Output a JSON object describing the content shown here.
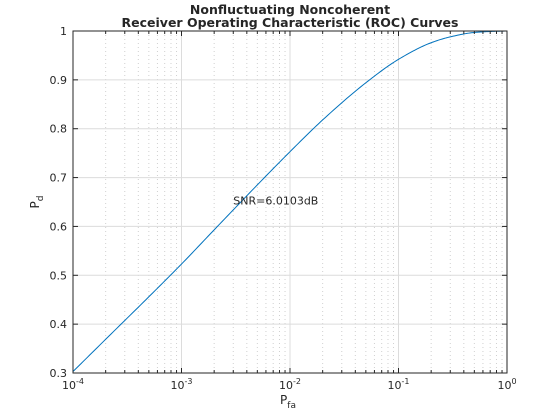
{
  "chart_data": {
    "type": "line",
    "title": [
      "Nonfluctuating Noncoherent",
      "Receiver Operating Characteristic (ROC) Curves"
    ],
    "xlabel": {
      "base": "P",
      "sub": "fa"
    },
    "ylabel": {
      "base": "P",
      "sub": "d"
    },
    "xscale": "log",
    "xlim": [
      0.0001,
      1
    ],
    "ylim": [
      0.3,
      1
    ],
    "grid": "major and minor (dotted)",
    "x_ticks": [
      {
        "value": 0.0001,
        "base": "10",
        "exp": "-4"
      },
      {
        "value": 0.001,
        "base": "10",
        "exp": "-3"
      },
      {
        "value": 0.01,
        "base": "10",
        "exp": "-2"
      },
      {
        "value": 0.1,
        "base": "10",
        "exp": "-1"
      },
      {
        "value": 1,
        "base": "10",
        "exp": "0"
      }
    ],
    "y_ticks": [
      {
        "value": 0.3,
        "label": "0.3"
      },
      {
        "value": 0.4,
        "label": "0.4"
      },
      {
        "value": 0.5,
        "label": "0.5"
      },
      {
        "value": 0.6,
        "label": "0.6"
      },
      {
        "value": 0.7,
        "label": "0.7"
      },
      {
        "value": 0.8,
        "label": "0.8"
      },
      {
        "value": 0.9,
        "label": "0.9"
      },
      {
        "value": 1,
        "label": "1"
      }
    ],
    "series": [
      {
        "color": "#0072bd",
        "x": [
          0.0001,
          0.0002,
          0.0005,
          0.001,
          0.002,
          0.005,
          0.01,
          0.02,
          0.05,
          0.1,
          0.2,
          0.3,
          0.5,
          0.7,
          1
        ],
        "y": [
          0.303,
          0.369,
          0.456,
          0.523,
          0.593,
          0.685,
          0.753,
          0.818,
          0.894,
          0.942,
          0.976,
          0.988,
          0.997,
          0.999,
          1.0
        ]
      }
    ],
    "annotations": [
      {
        "text": "SNR=6.0103dB",
        "x": 0.003,
        "y": 0.645
      }
    ]
  }
}
